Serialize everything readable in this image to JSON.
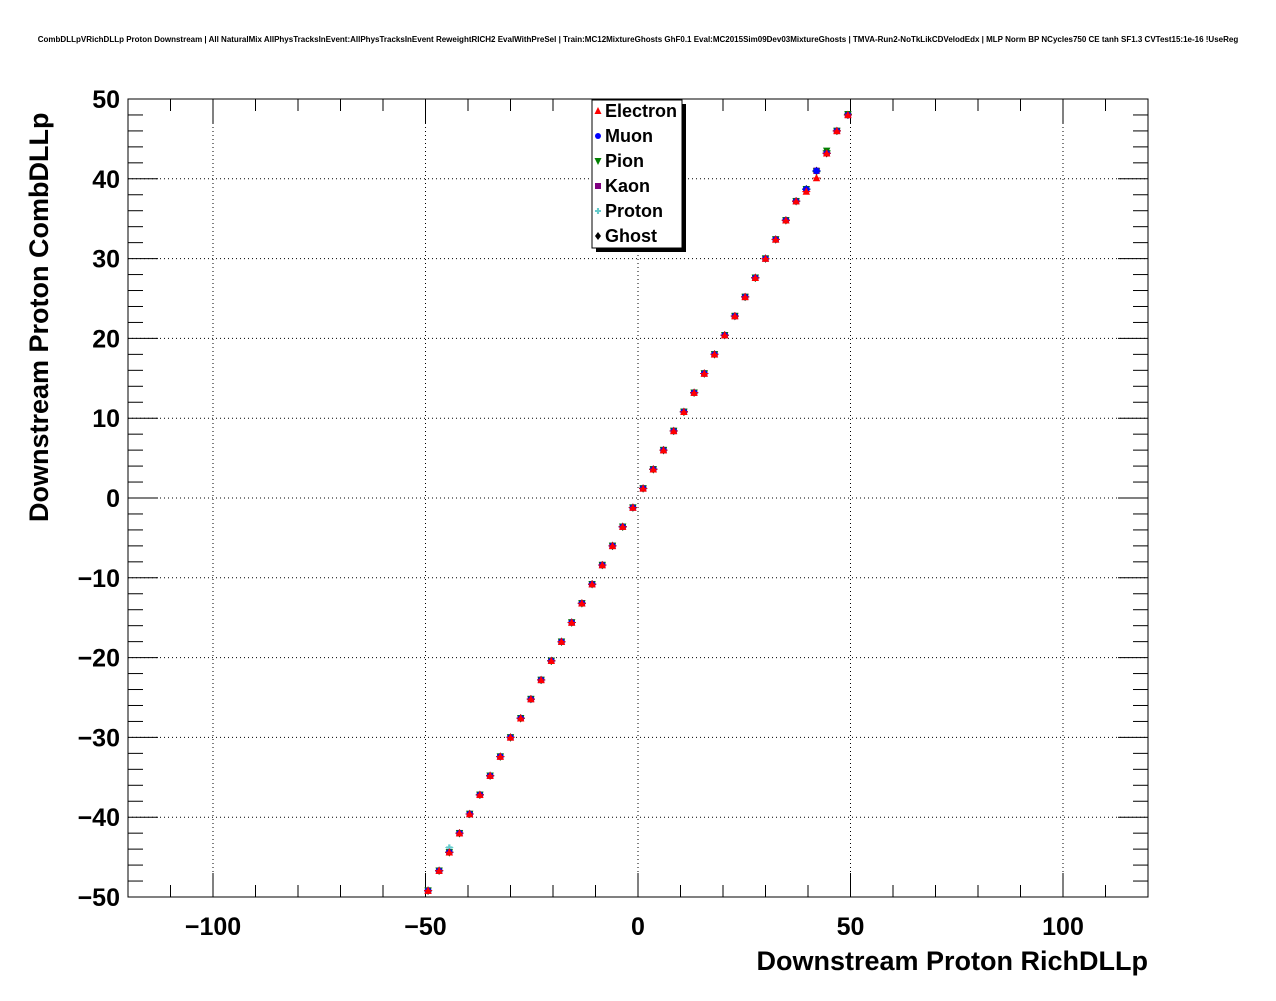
{
  "chart_data": {
    "type": "scatter",
    "title": "CombDLLpVRichDLLp Proton Downstream | All NaturalMix AllPhysTracksInEvent:AllPhysTracksInEvent ReweightRICH2 EvalWithPreSel | Train:MC12MixtureGhosts GhF0.1 Eval:MC2015Sim09Dev03MixtureGhosts | TMVA-Run2-NoTkLikCDVelodEdx | MLP Norm BP NCycles750 CE tanh SF1.3 CVTest15:1e-16 !UseReg",
    "xlabel": "Downstream Proton RichDLLp",
    "ylabel": "Downstream Proton CombDLLp",
    "xlim": [
      -120,
      120
    ],
    "ylim": [
      -50,
      50
    ],
    "grid": true,
    "legend_position": "top-center",
    "x_ticks": [
      -100,
      -50,
      0,
      50,
      100
    ],
    "y_ticks": [
      -50,
      -40,
      -30,
      -20,
      -10,
      0,
      10,
      20,
      30,
      40,
      50
    ],
    "x_tick_labels": [
      "−100",
      "−50",
      "0",
      "50",
      "100"
    ],
    "y_tick_labels": [
      "−50",
      "−40",
      "−30",
      "−20",
      "−10",
      "0",
      "10",
      "20",
      "30",
      "40",
      "50"
    ],
    "series": [
      {
        "name": "Electron",
        "color": "#ff0000",
        "marker": "triangle-up",
        "x": [
          -49.4,
          -46.8,
          -44.4,
          -42.0,
          -39.6,
          -37.2,
          -34.8,
          -32.4,
          -30.0,
          -27.6,
          -25.2,
          -22.8,
          -20.4,
          -18.0,
          -15.6,
          -13.2,
          -10.8,
          -8.4,
          -6.0,
          -3.6,
          -1.2,
          1.2,
          3.6,
          6.0,
          8.4,
          10.8,
          13.2,
          15.6,
          18.0,
          20.4,
          22.8,
          25.2,
          27.6,
          30.0,
          32.4,
          34.8,
          37.2,
          39.6,
          42.0,
          44.4,
          46.8,
          49.4
        ],
        "y": [
          -49.2,
          -46.7,
          -44.4,
          -42.0,
          -39.6,
          -37.2,
          -34.8,
          -32.4,
          -30.0,
          -27.6,
          -25.2,
          -22.8,
          -20.4,
          -18.0,
          -15.6,
          -13.2,
          -10.8,
          -8.4,
          -6.0,
          -3.6,
          -1.2,
          1.2,
          3.6,
          6.0,
          8.4,
          10.8,
          13.2,
          15.6,
          18.0,
          20.4,
          22.8,
          25.2,
          27.6,
          30.0,
          32.4,
          34.8,
          37.2,
          38.4,
          40.1,
          43.2,
          46.0,
          48.0
        ]
      },
      {
        "name": "Muon",
        "color": "#0000ff",
        "marker": "circle",
        "x": [
          -49.4,
          -46.8,
          -44.4,
          -42.0,
          -39.6,
          -37.2,
          -34.8,
          -32.4,
          -30.0,
          -27.6,
          -25.2,
          -22.8,
          -20.4,
          -18.0,
          -15.6,
          -13.2,
          -10.8,
          -8.4,
          -6.0,
          -3.6,
          -1.2,
          1.2,
          3.6,
          6.0,
          8.4,
          10.8,
          13.2,
          15.6,
          18.0,
          20.4,
          22.8,
          25.2,
          27.6,
          30.0,
          32.4,
          34.8,
          37.2,
          39.6,
          42.0,
          44.4,
          46.8,
          49.4
        ],
        "y": [
          -49.2,
          -46.7,
          -44.4,
          -42.0,
          -39.6,
          -37.2,
          -34.8,
          -32.4,
          -30.0,
          -27.6,
          -25.2,
          -22.8,
          -20.4,
          -18.0,
          -15.6,
          -13.2,
          -10.8,
          -8.4,
          -6.0,
          -3.6,
          -1.2,
          1.2,
          3.6,
          6.0,
          8.4,
          10.8,
          13.2,
          15.6,
          18.0,
          20.4,
          22.8,
          25.2,
          27.6,
          30.0,
          32.4,
          34.8,
          37.2,
          38.7,
          41.0,
          43.2,
          46.0,
          48.0
        ]
      },
      {
        "name": "Pion",
        "color": "#008000",
        "marker": "triangle-down",
        "x": [
          -49.4,
          -46.8,
          -44.4,
          -42.0,
          -39.6,
          -37.2,
          -34.8,
          -32.4,
          -30.0,
          -27.6,
          -25.2,
          -22.8,
          -20.4,
          -18.0,
          -15.6,
          -13.2,
          -10.8,
          -8.4,
          -6.0,
          -3.6,
          -1.2,
          1.2,
          3.6,
          6.0,
          8.4,
          10.8,
          13.2,
          15.6,
          18.0,
          20.4,
          22.8,
          25.2,
          27.6,
          30.0,
          32.4,
          34.8,
          37.2,
          39.6,
          42.0,
          44.4,
          46.8,
          49.4
        ],
        "y": [
          -49.2,
          -46.7,
          -44.4,
          -42.0,
          -39.6,
          -37.2,
          -34.8,
          -32.4,
          -30.0,
          -27.6,
          -25.2,
          -22.8,
          -20.4,
          -18.0,
          -15.6,
          -13.2,
          -10.8,
          -8.4,
          -6.0,
          -3.6,
          -1.2,
          1.2,
          3.6,
          6.0,
          8.4,
          10.8,
          13.2,
          15.6,
          18.0,
          20.4,
          22.8,
          25.2,
          27.6,
          30.0,
          32.4,
          34.8,
          37.2,
          38.7,
          40.9,
          43.5,
          46.0,
          48.1
        ]
      },
      {
        "name": "Kaon",
        "color": "#800080",
        "marker": "square",
        "x": [
          -49.4,
          -46.8,
          -44.4,
          -42.0,
          -39.6,
          -37.2,
          -34.8,
          -32.4,
          -30.0,
          -27.6,
          -25.2,
          -22.8,
          -20.4,
          -18.0,
          -15.6,
          -13.2,
          -10.8,
          -8.4,
          -6.0,
          -3.6,
          -1.2,
          1.2,
          3.6,
          6.0,
          8.4,
          10.8,
          13.2,
          15.6,
          18.0,
          20.4,
          22.8,
          25.2,
          27.6,
          30.0,
          32.4,
          34.8,
          37.2,
          39.6,
          42.0,
          44.4,
          46.8,
          49.4
        ],
        "y": [
          -49.2,
          -46.7,
          -44.4,
          -42.0,
          -39.6,
          -37.2,
          -34.8,
          -32.4,
          -30.0,
          -27.6,
          -25.2,
          -22.8,
          -20.4,
          -18.0,
          -15.6,
          -13.2,
          -10.8,
          -8.4,
          -6.0,
          -3.6,
          -1.2,
          1.2,
          3.6,
          6.0,
          8.4,
          10.8,
          13.2,
          15.6,
          18.0,
          20.4,
          22.8,
          25.2,
          27.6,
          30.0,
          32.4,
          34.8,
          37.2,
          38.7,
          41.0,
          43.2,
          46.0,
          48.0
        ]
      },
      {
        "name": "Proton",
        "color": "#66cccc",
        "marker": "cross",
        "x": [
          -49.4,
          -46.8,
          -44.4,
          -42.0,
          -39.6,
          -37.2,
          -34.8,
          -32.4,
          -30.0,
          -27.6,
          -25.2,
          -22.8,
          -20.4,
          -18.0,
          -15.6,
          -13.2,
          -10.8,
          -8.4,
          -6.0,
          -3.6,
          -1.2,
          1.2,
          3.6,
          6.0,
          8.4,
          10.8,
          13.2,
          15.6,
          18.0,
          20.4,
          22.8,
          25.2,
          27.6,
          30.0,
          32.4,
          34.8,
          37.2,
          39.6,
          42.0,
          44.4,
          46.8,
          49.4
        ],
        "y": [
          -49.2,
          -46.7,
          -43.8,
          -42.0,
          -39.6,
          -37.2,
          -34.8,
          -32.4,
          -30.0,
          -27.6,
          -25.2,
          -22.8,
          -20.4,
          -18.0,
          -15.6,
          -13.2,
          -10.8,
          -8.4,
          -6.0,
          -3.6,
          -1.2,
          1.2,
          3.6,
          6.0,
          8.4,
          10.8,
          13.2,
          15.6,
          18.0,
          20.4,
          22.8,
          25.2,
          27.6,
          30.0,
          32.4,
          34.8,
          37.2,
          38.7,
          41.0,
          43.2,
          46.0,
          48.0
        ]
      },
      {
        "name": "Ghost",
        "color": "#000000",
        "marker": "diamond",
        "x": [
          -49.4,
          -46.8,
          -44.4,
          -42.0,
          -39.6,
          -37.2,
          -34.8,
          -32.4,
          -30.0,
          -27.6,
          -25.2,
          -22.8,
          -20.4,
          -18.0,
          -15.6,
          -13.2,
          -10.8,
          -8.4,
          -6.0,
          -3.6,
          -1.2,
          1.2,
          3.6,
          6.0,
          8.4,
          10.8,
          13.2,
          15.6,
          18.0,
          20.4,
          22.8,
          25.2,
          27.6,
          30.0,
          32.4,
          34.8,
          37.2,
          39.6,
          42.0,
          44.4,
          46.8,
          49.4
        ],
        "y": [
          -49.2,
          -46.7,
          -44.4,
          -42.0,
          -39.6,
          -37.2,
          -34.8,
          -32.4,
          -30.0,
          -27.6,
          -25.2,
          -22.8,
          -20.4,
          -18.0,
          -15.6,
          -13.2,
          -10.8,
          -8.4,
          -6.0,
          -3.6,
          -1.2,
          1.2,
          3.6,
          6.0,
          8.4,
          10.8,
          13.2,
          15.6,
          18.0,
          20.4,
          22.8,
          25.2,
          27.6,
          30.0,
          32.4,
          34.8,
          37.2,
          38.7,
          41.0,
          43.2,
          46.0,
          48.0
        ]
      }
    ]
  }
}
